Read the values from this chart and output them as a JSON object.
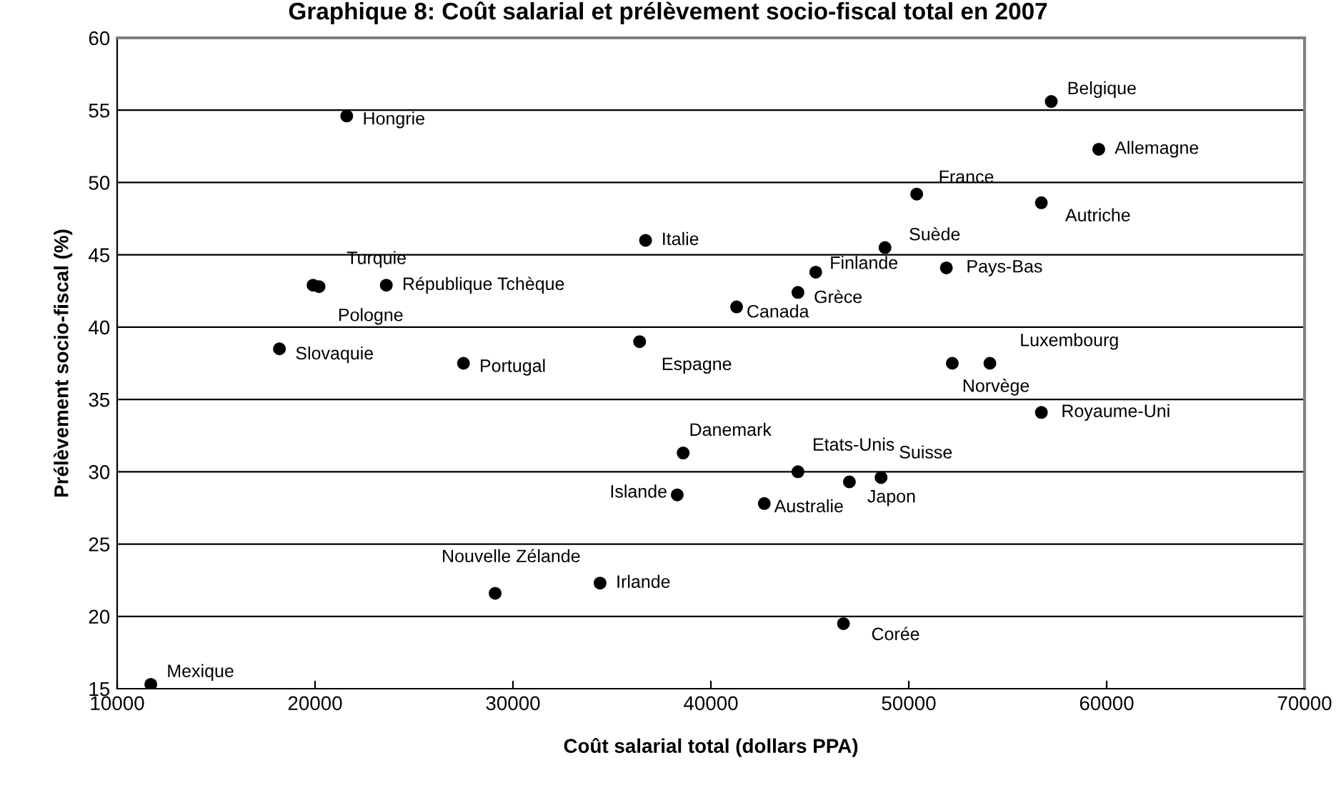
{
  "chart_data": {
    "type": "scatter",
    "title": "Graphique 8: Coût salarial et prélèvement socio-fiscal total en 2007",
    "xlabel": "Coût salarial total (dollars PPA)",
    "ylabel": "Prélèvement socio-fiscal (%)",
    "xlim": [
      10000,
      70000
    ],
    "xticks": [
      10000,
      20000,
      30000,
      40000,
      50000,
      60000,
      70000
    ],
    "ylim": [
      15,
      60
    ],
    "yticks": [
      15,
      20,
      25,
      30,
      35,
      40,
      45,
      50,
      55,
      60
    ],
    "grid": "y",
    "marker": "circle",
    "series": [
      {
        "color": "#000000",
        "x": [
          11700,
          21600,
          57200,
          59600,
          36700,
          19900,
          20200,
          23600,
          18200,
          27500,
          36400,
          38600,
          38300,
          29100,
          34400,
          50400,
          56700,
          48800,
          45300,
          51900,
          44400,
          41300,
          52200,
          54100,
          56700,
          44400,
          47000,
          48600,
          42700,
          46700
        ],
        "values": [
          15.3,
          54.6,
          55.6,
          52.3,
          46.0,
          42.9,
          42.8,
          42.9,
          38.5,
          37.5,
          39.0,
          31.3,
          28.4,
          21.6,
          22.3,
          49.2,
          48.6,
          45.5,
          43.8,
          44.1,
          42.4,
          41.4,
          37.5,
          37.5,
          34.1,
          30.0,
          29.3,
          29.6,
          27.8,
          19.5
        ]
      }
    ],
    "annotations": [
      {
        "text": "Mexique",
        "x": 11700,
        "y": 15.3
      },
      {
        "text": "Hongrie",
        "x": 21600,
        "y": 54.6
      },
      {
        "text": "Belgique",
        "x": 57200,
        "y": 55.6
      },
      {
        "text": "Allemagne",
        "x": 59600,
        "y": 52.3
      },
      {
        "text": "Italie",
        "x": 36700,
        "y": 46.0
      },
      {
        "text": "Turquie",
        "x": 19900,
        "y": 42.9
      },
      {
        "text": "Pologne",
        "x": 20200,
        "y": 42.8
      },
      {
        "text": "République Tchèque",
        "x": 23600,
        "y": 42.9
      },
      {
        "text": "Slovaquie",
        "x": 18200,
        "y": 38.5
      },
      {
        "text": "Portugal",
        "x": 27500,
        "y": 37.5
      },
      {
        "text": "Espagne",
        "x": 36400,
        "y": 39.0
      },
      {
        "text": "Danemark",
        "x": 38600,
        "y": 31.3
      },
      {
        "text": "Islande",
        "x": 38300,
        "y": 28.4
      },
      {
        "text": "Nouvelle Zélande",
        "x": 29100,
        "y": 21.6
      },
      {
        "text": "Irlande",
        "x": 34400,
        "y": 22.3
      },
      {
        "text": "France",
        "x": 50400,
        "y": 49.2
      },
      {
        "text": "Autriche",
        "x": 56700,
        "y": 48.6
      },
      {
        "text": "Suède",
        "x": 48800,
        "y": 45.5
      },
      {
        "text": "Finlande",
        "x": 45300,
        "y": 43.8
      },
      {
        "text": "Pays-Bas",
        "x": 51900,
        "y": 44.1
      },
      {
        "text": "Grèce",
        "x": 44400,
        "y": 42.4
      },
      {
        "text": "Canada",
        "x": 41300,
        "y": 41.4
      },
      {
        "text": "Norvège",
        "x": 52200,
        "y": 37.5
      },
      {
        "text": "Luxembourg",
        "x": 54100,
        "y": 37.5
      },
      {
        "text": "Royaume-Uni",
        "x": 56700,
        "y": 34.1
      },
      {
        "text": "Etats-Unis",
        "x": 44400,
        "y": 30.0
      },
      {
        "text": "Japon",
        "x": 47000,
        "y": 29.3
      },
      {
        "text": "Suisse",
        "x": 48600,
        "y": 29.6
      },
      {
        "text": "Australie",
        "x": 42700,
        "y": 27.8
      },
      {
        "text": "Corée",
        "x": 46700,
        "y": 19.5
      }
    ]
  }
}
